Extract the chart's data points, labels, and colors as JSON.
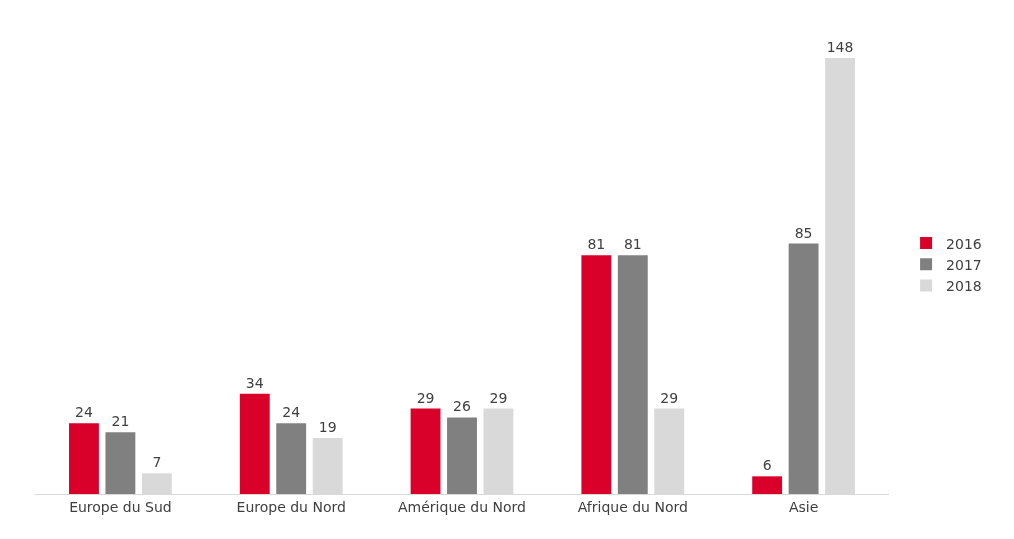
{
  "chart_data": {
    "type": "bar",
    "categories": [
      "Europe du Sud",
      "Europe du Nord",
      "Amérique du Nord",
      "Afrique du Nord",
      "Asie"
    ],
    "series": [
      {
        "name": "2016",
        "color": "#d9002a",
        "values": [
          24,
          34,
          29,
          81,
          6
        ]
      },
      {
        "name": "2017",
        "color": "#808080",
        "values": [
          21,
          24,
          26,
          81,
          85
        ]
      },
      {
        "name": "2018",
        "color": "#d9d9d9",
        "values": [
          7,
          19,
          29,
          29,
          148
        ]
      }
    ],
    "data_labels": true,
    "legend": "right"
  }
}
